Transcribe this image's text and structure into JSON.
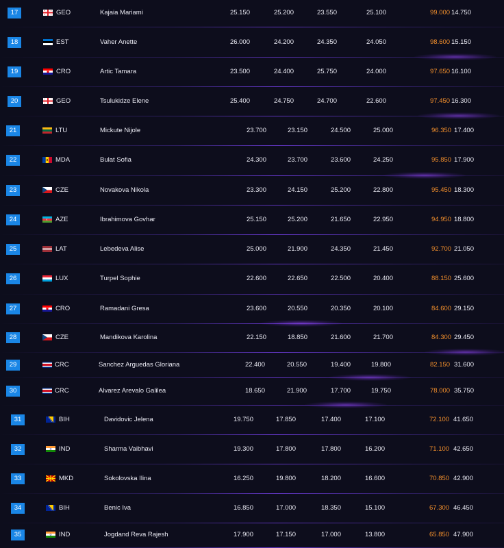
{
  "colors": {
    "rank_badge": "#1a86e6",
    "total_score": "#f28f2c",
    "row_separator": "#6a3cdc",
    "background": "#0d0d1c"
  },
  "rows": [
    {
      "rank": "17",
      "flag": "geo-flag-icon",
      "country": "GEO",
      "name": "Kajaia Mariami",
      "s1": "25.150",
      "s2": "25.200",
      "s3": "23.550",
      "s4": "25.100",
      "total": "99.000",
      "gap": "14.750"
    },
    {
      "rank": "18",
      "flag": "est-flag-icon",
      "country": "EST",
      "name": "Vaher Anette",
      "s1": "26.000",
      "s2": "24.200",
      "s3": "24.350",
      "s4": "24.050",
      "total": "98.600",
      "gap": "15.150"
    },
    {
      "rank": "19",
      "flag": "cro-flag-icon",
      "country": "CRO",
      "name": "Artic Tamara",
      "s1": "23.500",
      "s2": "24.400",
      "s3": "25.750",
      "s4": "24.000",
      "total": "97.650",
      "gap": "16.100"
    },
    {
      "rank": "20",
      "flag": "geo-flag-icon",
      "country": "GEO",
      "name": "Tsulukidze Elene",
      "s1": "25.400",
      "s2": "24.750",
      "s3": "24.700",
      "s4": "22.600",
      "total": "97.450",
      "gap": "16.300"
    },
    {
      "rank": "21",
      "flag": "ltu-flag-icon",
      "country": "LTU",
      "name": "Mickute Nijole",
      "s1": "23.700",
      "s2": "23.150",
      "s3": "24.500",
      "s4": "25.000",
      "total": "96.350",
      "gap": "17.400"
    },
    {
      "rank": "22",
      "flag": "mda-flag-icon",
      "country": "MDA",
      "name": "Bulat Sofia",
      "s1": "24.300",
      "s2": "23.700",
      "s3": "23.600",
      "s4": "24.250",
      "total": "95.850",
      "gap": "17.900"
    },
    {
      "rank": "23",
      "flag": "cze-flag-icon",
      "country": "CZE",
      "name": "Novakova Nikola",
      "s1": "23.300",
      "s2": "24.150",
      "s3": "25.200",
      "s4": "22.800",
      "total": "95.450",
      "gap": "18.300"
    },
    {
      "rank": "24",
      "flag": "aze-flag-icon",
      "country": "AZE",
      "name": "Ibrahimova Govhar",
      "s1": "25.150",
      "s2": "25.200",
      "s3": "21.650",
      "s4": "22.950",
      "total": "94.950",
      "gap": "18.800"
    },
    {
      "rank": "25",
      "flag": "lat-flag-icon",
      "country": "LAT",
      "name": "Lebedeva Alise",
      "s1": "25.000",
      "s2": "21.900",
      "s3": "24.350",
      "s4": "21.450",
      "total": "92.700",
      "gap": "21.050"
    },
    {
      "rank": "26",
      "flag": "lux-flag-icon",
      "country": "LUX",
      "name": "Turpel Sophie",
      "s1": "22.600",
      "s2": "22.650",
      "s3": "22.500",
      "s4": "20.400",
      "total": "88.150",
      "gap": "25.600"
    },
    {
      "rank": "27",
      "flag": "cro-flag-icon",
      "country": "CRO",
      "name": "Ramadani Gresa",
      "s1": "23.600",
      "s2": "20.550",
      "s3": "20.350",
      "s4": "20.100",
      "total": "84.600",
      "gap": "29.150"
    },
    {
      "rank": "28",
      "flag": "cze-flag-icon",
      "country": "CZE",
      "name": "Mandikova Karolina",
      "s1": "22.150",
      "s2": "18.850",
      "s3": "21.600",
      "s4": "21.700",
      "total": "84.300",
      "gap": "29.450"
    },
    {
      "rank": "29",
      "flag": "crc-flag-icon",
      "country": "CRC",
      "name": "Sanchez Arguedas Gloriana",
      "s1": "22.400",
      "s2": "20.550",
      "s3": "19.400",
      "s4": "19.800",
      "total": "82.150",
      "gap": "31.600"
    },
    {
      "rank": "30",
      "flag": "crc-flag-icon",
      "country": "CRC",
      "name": "Alvarez Arevalo Galilea",
      "s1": "18.650",
      "s2": "21.900",
      "s3": "17.700",
      "s4": "19.750",
      "total": "78.000",
      "gap": "35.750"
    },
    {
      "rank": "31",
      "flag": "bih-flag-icon",
      "country": "BIH",
      "name": "Davidovic Jelena",
      "s1": "19.750",
      "s2": "17.850",
      "s3": "17.400",
      "s4": "17.100",
      "total": "72.100",
      "gap": "41.650"
    },
    {
      "rank": "32",
      "flag": "ind-flag-icon",
      "country": "IND",
      "name": "Sharma Vaibhavi",
      "s1": "19.300",
      "s2": "17.800",
      "s3": "17.800",
      "s4": "16.200",
      "total": "71.100",
      "gap": "42.650"
    },
    {
      "rank": "33",
      "flag": "mkd-flag-icon",
      "country": "MKD",
      "name": "Sokolovska Ilina",
      "s1": "16.250",
      "s2": "19.800",
      "s3": "18.200",
      "s4": "16.600",
      "total": "70.850",
      "gap": "42.900"
    },
    {
      "rank": "34",
      "flag": "bih-flag-icon",
      "country": "BIH",
      "name": "Benic Iva",
      "s1": "16.850",
      "s2": "17.000",
      "s3": "18.350",
      "s4": "15.100",
      "total": "67.300",
      "gap": "46.450"
    },
    {
      "rank": "35",
      "flag": "ind-flag-icon",
      "country": "IND",
      "name": "Jogdand Reva Rajesh",
      "s1": "17.900",
      "s2": "17.150",
      "s3": "17.000",
      "s4": "13.800",
      "total": "65.850",
      "gap": "47.900"
    }
  ]
}
